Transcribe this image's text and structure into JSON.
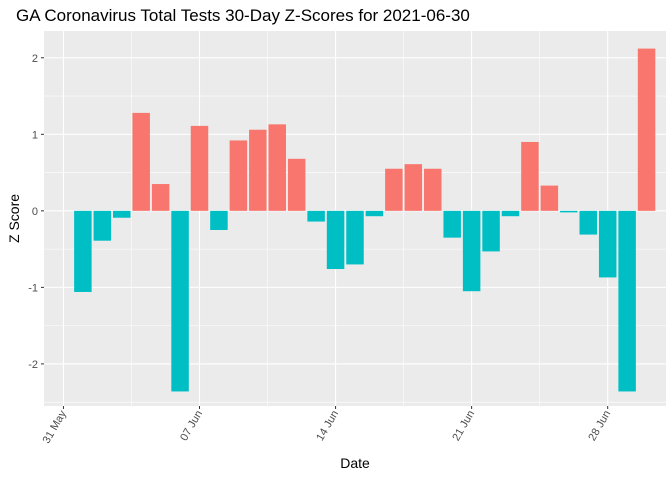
{
  "chart_data": {
    "type": "bar",
    "title": "GA Coronavirus Total Tests 30-Day Z-Scores for 2021-06-30",
    "xlabel": "Date",
    "ylabel": "Z Score",
    "ylim": [
      -2.55,
      2.35
    ],
    "y_ticks": [
      -2,
      -1,
      0,
      1,
      2
    ],
    "y_tick_labels": [
      "-2",
      "-1",
      "0",
      "1",
      "2"
    ],
    "x_ticks": [
      {
        "date": "2021-05-31",
        "label": "31 May"
      },
      {
        "date": "2021-06-07",
        "label": "07 Jun"
      },
      {
        "date": "2021-06-14",
        "label": "14 Jun"
      },
      {
        "date": "2021-06-21",
        "label": "21 Jun"
      },
      {
        "date": "2021-06-28",
        "label": "28 Jun"
      }
    ],
    "x_range": [
      "2021-05-30",
      "2021-07-01"
    ],
    "categories": [
      "2021-06-01",
      "2021-06-02",
      "2021-06-03",
      "2021-06-04",
      "2021-06-05",
      "2021-06-06",
      "2021-06-07",
      "2021-06-08",
      "2021-06-09",
      "2021-06-10",
      "2021-06-11",
      "2021-06-12",
      "2021-06-13",
      "2021-06-14",
      "2021-06-15",
      "2021-06-16",
      "2021-06-17",
      "2021-06-18",
      "2021-06-19",
      "2021-06-20",
      "2021-06-21",
      "2021-06-22",
      "2021-06-23",
      "2021-06-24",
      "2021-06-25",
      "2021-06-26",
      "2021-06-27",
      "2021-06-28",
      "2021-06-29",
      "2021-06-30"
    ],
    "values": [
      -1.06,
      -0.39,
      -0.09,
      1.28,
      0.35,
      -2.36,
      1.11,
      -0.25,
      0.92,
      1.06,
      1.13,
      0.68,
      -0.14,
      -0.76,
      -0.7,
      -0.07,
      0.55,
      0.61,
      0.55,
      -0.35,
      -1.05,
      -0.53,
      -0.07,
      0.9,
      0.33,
      -0.02,
      -0.31,
      -0.87,
      -2.36,
      2.12
    ],
    "positive_color": "#F8766D",
    "negative_color": "#00BFC4",
    "panel_background": "#EBEBEB",
    "grid": true,
    "legend": "none"
  }
}
